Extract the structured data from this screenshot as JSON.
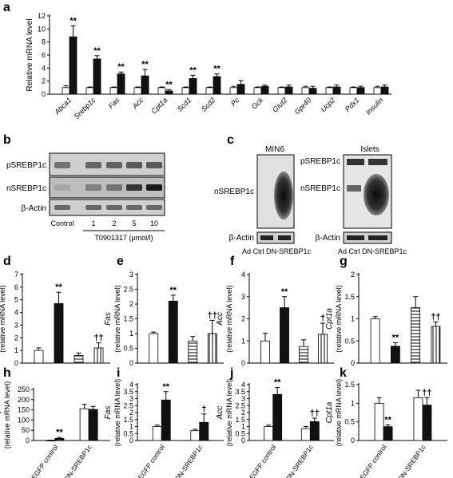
{
  "colors": {
    "white_bar": "#ffffff",
    "black_bar": "#111111",
    "ink": "#000000",
    "blot_bg": "#d9d9d9"
  },
  "panel_labels": [
    "a",
    "b",
    "c",
    "d",
    "e",
    "f",
    "g",
    "h",
    "i",
    "j",
    "k"
  ],
  "panel_b": {
    "rows": [
      "pSREBP1c",
      "nSREBP1c",
      "β-Actin"
    ],
    "lanes": [
      "Control",
      "1",
      "2",
      "5",
      "10"
    ],
    "treatment_label": "T0901317 (μmol/l)"
  },
  "panel_c": {
    "left_title": "MIN6",
    "right_title": "Islets",
    "left_rows": [
      "nSREBP1c",
      "β-Actin"
    ],
    "right_rows": [
      "pSREBP1c",
      "nSREBP1c",
      "β-Actin"
    ],
    "lanes_left": "Ad Ctrl DN-SREBP1c",
    "lanes_right": "Ad Ctrl DN-SREBP1c"
  },
  "chart_data": [
    {
      "panel": "a",
      "type": "bar",
      "ylabel": "Relative mRNA level",
      "ylim": [
        0,
        12
      ],
      "yticks": [
        0,
        2,
        4,
        6,
        8,
        10,
        12
      ],
      "categories": [
        "Abca1",
        "Srebp1c",
        "Fas",
        "Acc",
        "Cpt1a",
        "Scd1",
        "Scd2",
        "Pc",
        "Gck",
        "Glut2",
        "Gpr40",
        "Ucp2",
        "Pdx1",
        "Insulin"
      ],
      "series": [
        {
          "values": [
            1,
            1,
            1,
            1,
            1,
            1,
            1,
            1,
            1,
            1,
            1,
            1,
            1,
            1
          ],
          "errors": [
            0.3,
            0.1,
            0.1,
            0.1,
            0.1,
            0.1,
            0.1,
            0.2,
            0.1,
            0.1,
            0.2,
            0.1,
            0.1,
            0.2
          ],
          "fill": "#ffffff"
        },
        {
          "values": [
            8.8,
            5.4,
            3.1,
            2.8,
            0.5,
            2.4,
            2.7,
            1.5,
            1.2,
            1.1,
            0.9,
            1.1,
            1.0,
            1.1
          ],
          "errors": [
            1.7,
            0.5,
            0.3,
            1.0,
            0.2,
            0.5,
            0.4,
            0.6,
            0.2,
            0.3,
            0.3,
            0.3,
            0.2,
            0.3
          ],
          "fill": "#111111"
        }
      ],
      "annotations": [
        "**",
        "**",
        "**",
        "**",
        "**",
        "**",
        "**",
        "",
        "",
        "",
        "",
        "",
        "",
        ""
      ]
    },
    {
      "panel": "d",
      "type": "bar",
      "ylabel_main": "Srebp1c",
      "ylabel_sub": "(relative mRNA level)",
      "ylim": [
        0,
        7
      ],
      "yticks": [
        0,
        1,
        2,
        3,
        4,
        5,
        6,
        7
      ],
      "values": [
        1,
        4.7,
        0.6,
        1.2
      ],
      "errors": [
        0.2,
        0.9,
        0.2,
        0.4
      ],
      "fills": [
        "white",
        "black",
        "hstripe",
        "vstripe"
      ],
      "annotations": [
        "",
        "**",
        "",
        "††"
      ]
    },
    {
      "panel": "e",
      "type": "bar",
      "ylabel_main": "Fas",
      "ylabel_sub": "(relative mRNA level)",
      "ylim": [
        0,
        3
      ],
      "yticks": [
        0,
        0.5,
        1,
        1.5,
        2,
        2.5,
        3
      ],
      "values": [
        1,
        2.1,
        0.75,
        1.0
      ],
      "errors": [
        0.05,
        0.2,
        0.15,
        0.45
      ],
      "fills": [
        "white",
        "black",
        "hstripe",
        "vstripe"
      ],
      "annotations": [
        "",
        "**",
        "",
        "††"
      ]
    },
    {
      "panel": "f",
      "type": "bar",
      "ylabel_main": "Acc",
      "ylabel_sub": "(relative mRNA level)",
      "ylim": [
        0,
        4
      ],
      "yticks": [
        0,
        1,
        2,
        3,
        4
      ],
      "values": [
        1,
        2.5,
        0.75,
        1.3
      ],
      "errors": [
        0.35,
        0.5,
        0.3,
        0.5
      ],
      "fills": [
        "white",
        "black",
        "hstripe",
        "vstripe"
      ],
      "annotations": [
        "",
        "**",
        "",
        "†"
      ]
    },
    {
      "panel": "g",
      "type": "bar",
      "ylabel_main": "Cpt1a",
      "ylabel_sub": "(relative mRNA level)",
      "ylim": [
        0,
        2
      ],
      "yticks": [
        0,
        0.5,
        1,
        1.5,
        2
      ],
      "values": [
        1,
        0.38,
        1.25,
        0.83
      ],
      "errors": [
        0.05,
        0.08,
        0.25,
        0.1
      ],
      "fills": [
        "white",
        "black",
        "hstripe",
        "vstripe"
      ],
      "annotations": [
        "",
        "**",
        "",
        "††"
      ]
    },
    {
      "panel": "h",
      "type": "bar",
      "ylabel_main": "Srebp1c",
      "ylabel_sub": "(relative mRNA level)",
      "ylim": [
        0,
        250
      ],
      "yticks": [
        0,
        50,
        100,
        150,
        200,
        250
      ],
      "groups": [
        "EGFP control",
        "DN-SREBP1c"
      ],
      "values": [
        1,
        10,
        155,
        152
      ],
      "errors": [
        0.5,
        5,
        22,
        15
      ],
      "fills": [
        "white",
        "black",
        "white",
        "black"
      ],
      "annotations": [
        "",
        "**",
        "",
        ""
      ]
    },
    {
      "panel": "i",
      "type": "bar",
      "ylabel_main": "Fas",
      "ylabel_sub": "(relative mRNA level)",
      "ylim": [
        0,
        4
      ],
      "yticks": [
        0,
        0.5,
        1,
        1.5,
        2,
        2.5,
        3,
        3.5,
        4
      ],
      "groups": [
        "EGFP control",
        "DN-SREBP1c"
      ],
      "values": [
        1,
        2.9,
        0.7,
        1.3
      ],
      "errors": [
        0.1,
        0.6,
        0.1,
        0.6
      ],
      "fills": [
        "white",
        "black",
        "white",
        "black"
      ],
      "annotations": [
        "",
        "**",
        "",
        "†"
      ]
    },
    {
      "panel": "j",
      "type": "bar",
      "ylabel_main": "Acc",
      "ylabel_sub": "(relative mRNA level)",
      "ylim": [
        0,
        4
      ],
      "yticks": [
        0,
        0.5,
        1,
        1.5,
        2,
        2.5,
        3,
        3.5,
        4
      ],
      "groups": [
        "EGFP control",
        "DN-SREBP1c"
      ],
      "values": [
        1,
        3.3,
        0.85,
        1.35
      ],
      "errors": [
        0.1,
        0.5,
        0.15,
        0.25
      ],
      "fills": [
        "white",
        "black",
        "white",
        "black"
      ],
      "annotations": [
        "",
        "**",
        "",
        "††"
      ]
    },
    {
      "panel": "k",
      "type": "bar",
      "ylabel_main": "Cpt1a",
      "ylabel_sub": "(relative mRNA level)",
      "ylim": [
        0,
        1.5
      ],
      "yticks": [
        0,
        0.5,
        1,
        1.5
      ],
      "groups": [
        "EGFP control",
        "DN-SREBP1c"
      ],
      "values": [
        1,
        0.37,
        1.15,
        0.95
      ],
      "errors": [
        0.15,
        0.05,
        0.2,
        0.2
      ],
      "fills": [
        "white",
        "black",
        "white",
        "black"
      ],
      "annotations": [
        "",
        "**",
        "",
        "††"
      ]
    }
  ]
}
